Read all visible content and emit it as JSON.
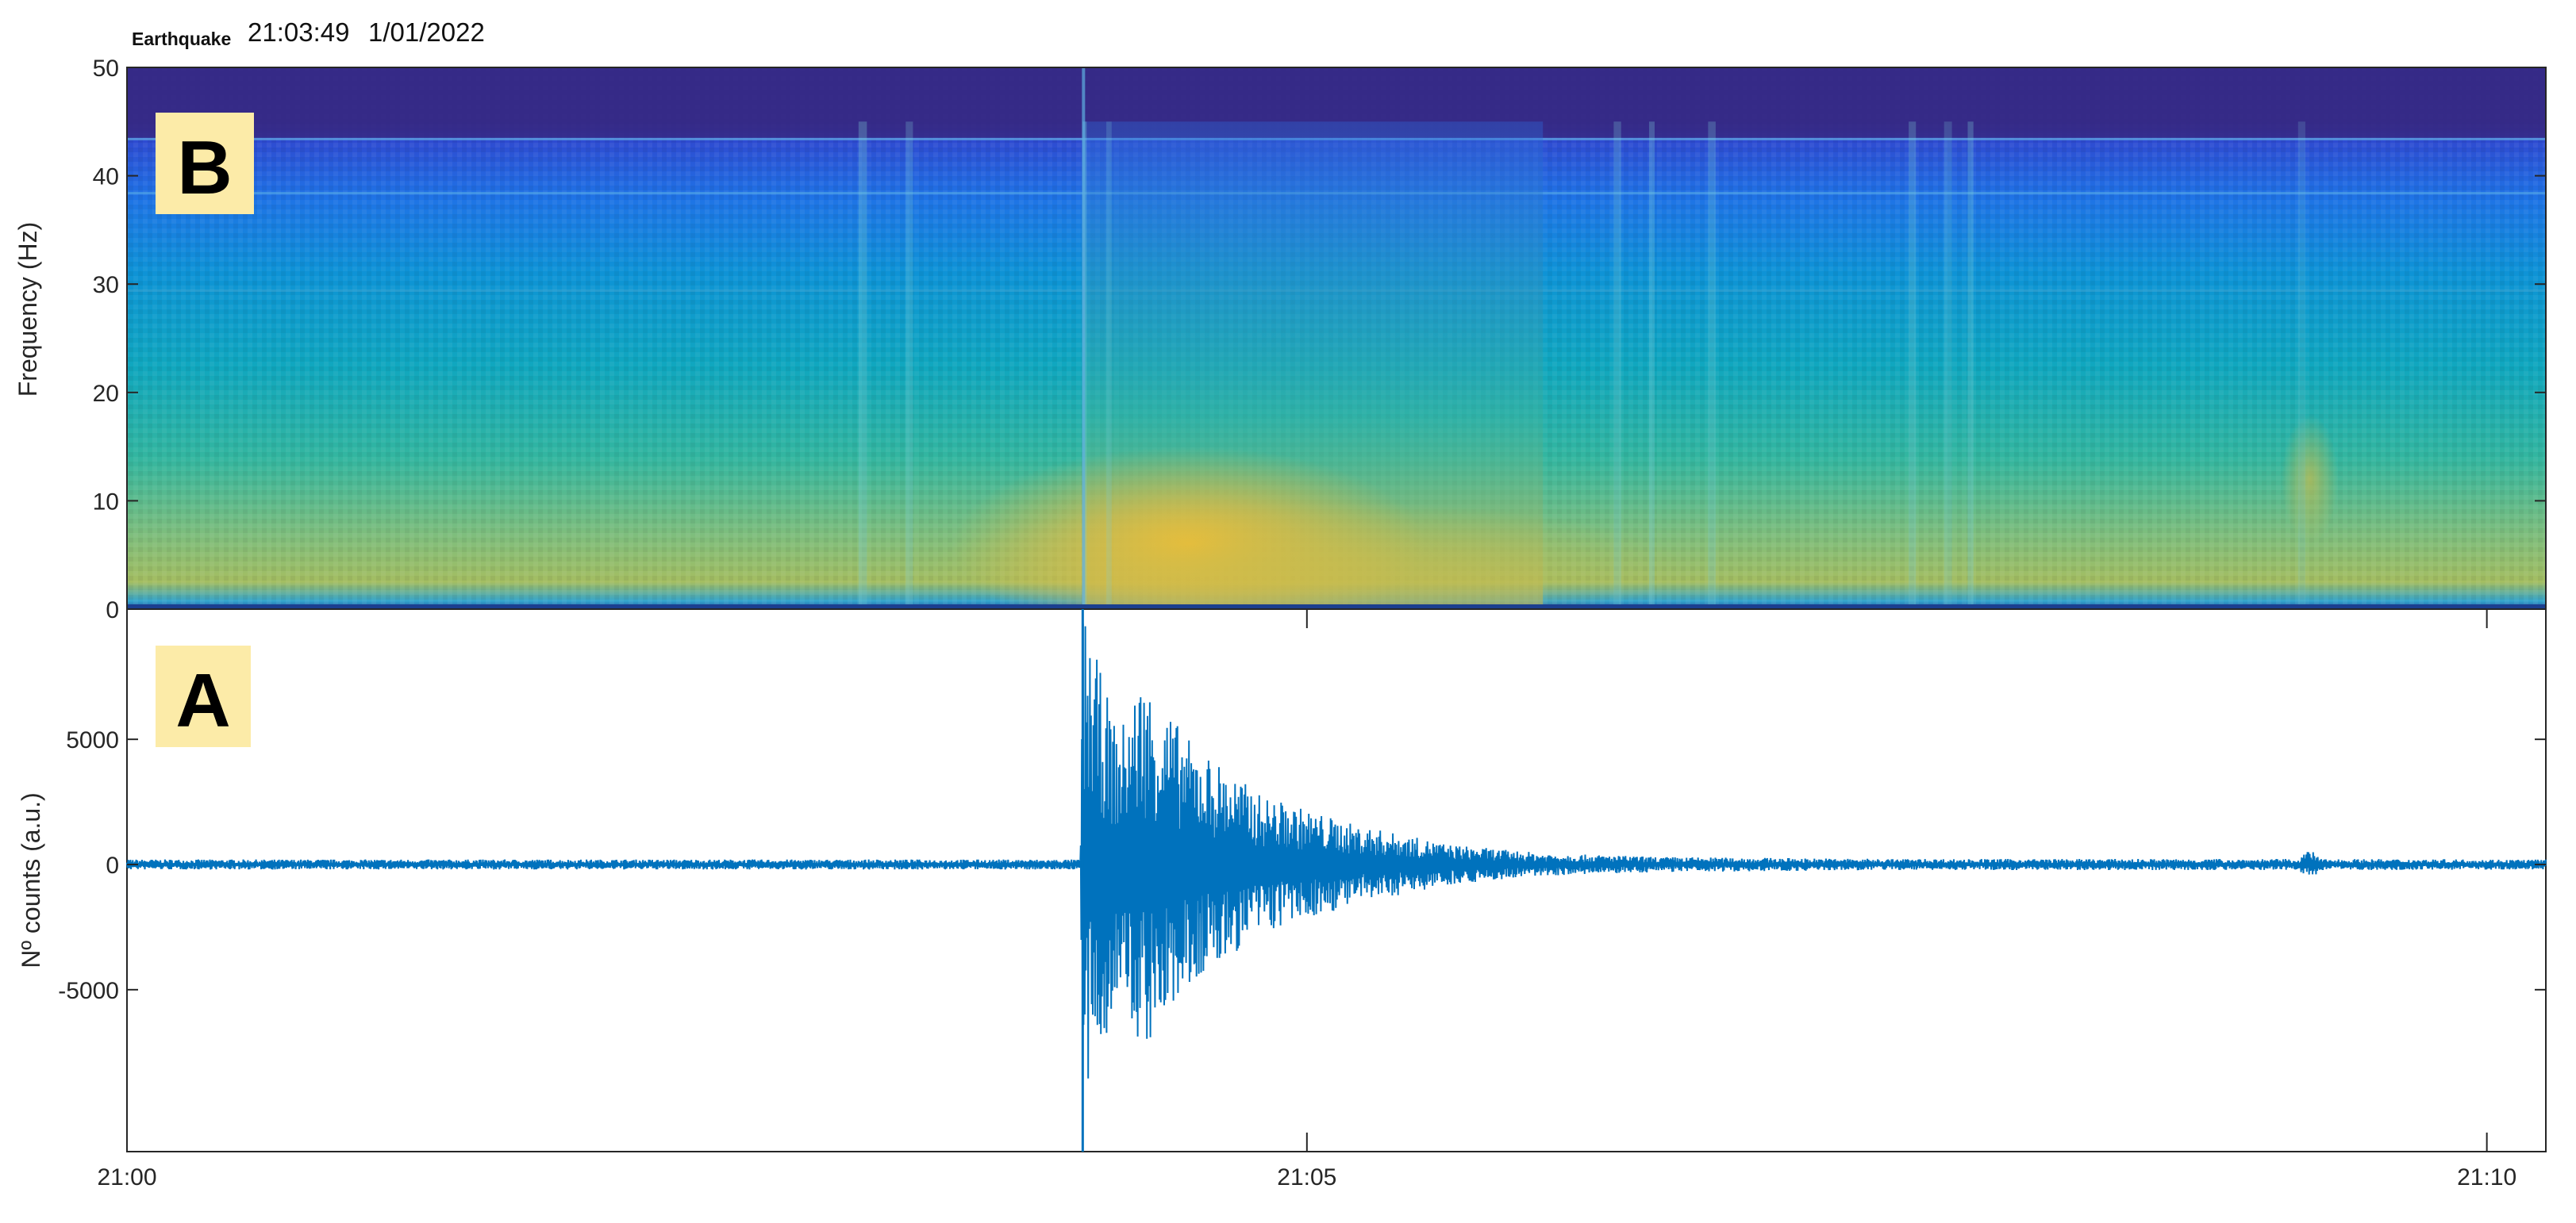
{
  "header": {
    "label": "Earthquake",
    "time": "21:03:49",
    "date": "1/01/2022"
  },
  "colors": {
    "waveform": "#0072BD",
    "panel_label_bg": "#FCEBA8",
    "axes": "#262626"
  },
  "chart_data": [
    {
      "type": "heatmap",
      "panel_label": "B",
      "title": "",
      "xlabel": "",
      "ylabel": "Frequency (Hz)",
      "xlim_minutes_after_2100": [
        0,
        10.25
      ],
      "ylim": [
        0,
        50
      ],
      "yticks": [
        0,
        10,
        20,
        30,
        40,
        50
      ],
      "grid": false,
      "colormap": "parula",
      "features": [
        {
          "description_value": "event onset",
          "t_min": 4.05,
          "f_range": [
            0,
            50
          ]
        },
        {
          "description_value": "peak energy",
          "t_min": [
            4.1,
            5.2
          ],
          "f_range": [
            0,
            12
          ]
        },
        {
          "description_value": "noise lines",
          "t_min": [
            6.2,
            7.9
          ],
          "f_range": [
            0,
            45
          ]
        }
      ]
    },
    {
      "type": "line",
      "panel_label": "A",
      "title": "",
      "xlabel": "",
      "ylabel": "Nº counts (a.u.)",
      "xlim": [
        "21:00",
        "21:10:15"
      ],
      "xticks": [
        "21:00",
        "21:05",
        "21:10"
      ],
      "ylim": [
        -10200,
        10200
      ],
      "yticks": [
        5000,
        0,
        -5000
      ],
      "grid": false,
      "series": [
        {
          "name": "",
          "color": "#0072BD",
          "envelope_t_min": [
            0,
            4.04,
            4.05,
            4.2,
            4.3,
            4.5,
            4.8,
            5.2,
            5.6,
            6.0,
            6.5,
            7.5,
            9.2,
            9.25,
            9.3,
            10.25
          ],
          "envelope_counts": [
            200,
            200,
            10200,
            5200,
            7600,
            5000,
            2800,
            1600,
            800,
            450,
            300,
            220,
            220,
            600,
            220,
            200
          ]
        }
      ]
    }
  ]
}
